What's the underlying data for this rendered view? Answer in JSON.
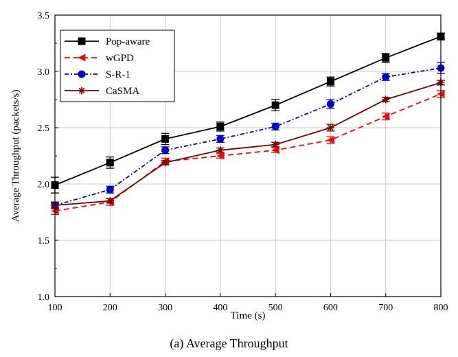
{
  "caption": "(a) Average Throughput",
  "chart_data": {
    "type": "line",
    "xlabel": "Time (s)",
    "ylabel": "Average Throughput (packets/s)",
    "xlim": [
      100,
      800
    ],
    "ylim": [
      1.0,
      3.5
    ],
    "xticks": [
      100,
      200,
      300,
      400,
      500,
      600,
      700,
      800
    ],
    "yticks": [
      1.0,
      1.5,
      2.0,
      2.5,
      3.0,
      3.5
    ],
    "grid": true,
    "legend_position": "top-left",
    "x": [
      100,
      200,
      300,
      400,
      500,
      600,
      700,
      800
    ],
    "series": [
      {
        "name": "Pop-aware",
        "values": [
          1.99,
          2.19,
          2.4,
          2.51,
          2.7,
          2.91,
          3.12,
          3.31
        ],
        "errors": [
          0.07,
          0.05,
          0.05,
          0.04,
          0.05,
          0.04,
          0.04,
          0.03
        ],
        "color": "#000000",
        "dash": "solid",
        "marker": "square"
      },
      {
        "name": "wGPD",
        "values": [
          1.76,
          1.84,
          2.2,
          2.25,
          2.3,
          2.39,
          2.6,
          2.8
        ],
        "errors": [
          0.03,
          0.03,
          0.03,
          0.02,
          0.02,
          0.03,
          0.03,
          0.03
        ],
        "color": "#ff0000",
        "dash": "dashed",
        "marker": "triangle-left"
      },
      {
        "name": "S-R-1",
        "values": [
          1.81,
          1.95,
          2.3,
          2.4,
          2.51,
          2.71,
          2.95,
          3.03
        ],
        "errors": [
          0.03,
          0.03,
          0.03,
          0.03,
          0.03,
          0.04,
          0.03,
          0.05
        ],
        "color": "#0000cc",
        "dash": "dashdot",
        "marker": "circle"
      },
      {
        "name": "CaSMA",
        "values": [
          1.81,
          1.85,
          2.19,
          2.3,
          2.35,
          2.5,
          2.75,
          2.9
        ],
        "errors": [
          0.02,
          0.02,
          0.02,
          0.02,
          0.02,
          0.03,
          0.02,
          0.02
        ],
        "color": "#7b0000",
        "dash": "solid",
        "marker": "asterisk"
      }
    ]
  }
}
